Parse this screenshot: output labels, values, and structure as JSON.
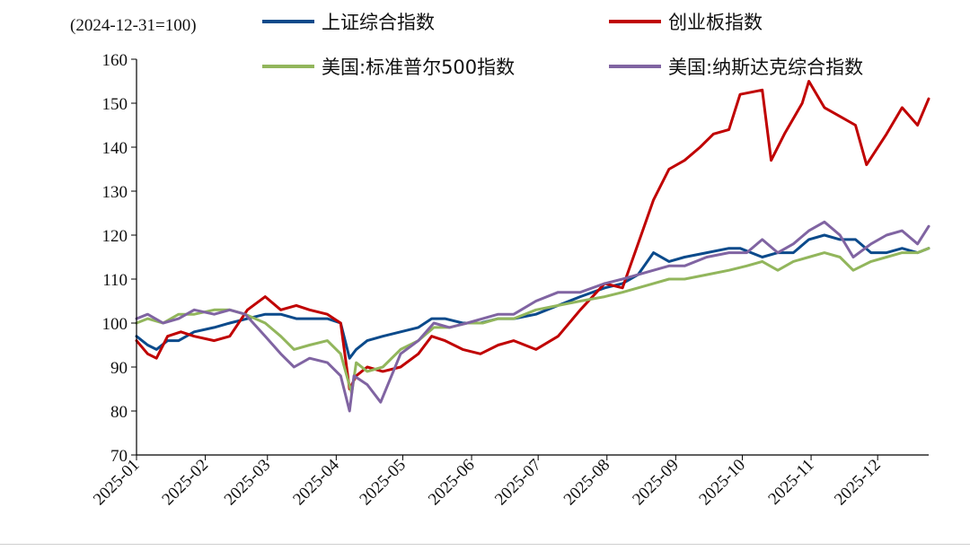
{
  "chart_data": {
    "type": "line",
    "title": "",
    "unit_note": "(2024-12-31=100)",
    "xlabel": "",
    "ylabel": "",
    "ylim": [
      70,
      160
    ],
    "yticks": [
      70,
      80,
      90,
      100,
      110,
      120,
      130,
      140,
      150,
      160
    ],
    "xlim": [
      "2025-01-01",
      "2025-12-24"
    ],
    "xtick_labels": [
      "2025-01",
      "2025-02",
      "2025-03",
      "2025-04",
      "2025-05",
      "2025-06",
      "2025-07",
      "2025-08",
      "2025-09",
      "2025-10",
      "2025-11",
      "2025-12"
    ],
    "xtick_dates": [
      "2025-01-01",
      "2025-02-01",
      "2025-03-01",
      "2025-04-01",
      "2025-05-01",
      "2025-06-01",
      "2025-07-01",
      "2025-08-01",
      "2025-09-01",
      "2025-10-01",
      "2025-11-01",
      "2025-12-01"
    ],
    "grid": false,
    "legend_position": "top",
    "series": [
      {
        "name": "上证综合指数",
        "color": "#0b4a8b",
        "x": [
          "2025-01-01",
          "2025-01-06",
          "2025-01-10",
          "2025-01-15",
          "2025-01-20",
          "2025-01-27",
          "2025-02-05",
          "2025-02-12",
          "2025-02-20",
          "2025-02-28",
          "2025-03-07",
          "2025-03-14",
          "2025-03-20",
          "2025-03-28",
          "2025-04-03",
          "2025-04-07",
          "2025-04-10",
          "2025-04-15",
          "2025-04-22",
          "2025-04-30",
          "2025-05-08",
          "2025-05-14",
          "2025-05-20",
          "2025-05-28",
          "2025-06-05",
          "2025-06-13",
          "2025-06-20",
          "2025-06-30",
          "2025-07-10",
          "2025-07-20",
          "2025-07-31",
          "2025-08-08",
          "2025-08-15",
          "2025-08-22",
          "2025-08-29",
          "2025-09-05",
          "2025-09-15",
          "2025-09-25",
          "2025-09-30",
          "2025-10-10",
          "2025-10-17",
          "2025-10-24",
          "2025-10-31",
          "2025-11-07",
          "2025-11-14",
          "2025-11-21",
          "2025-11-28",
          "2025-12-05",
          "2025-12-12",
          "2025-12-19",
          "2025-12-24"
        ],
        "values": [
          97,
          95,
          94,
          96,
          96,
          98,
          99,
          100,
          101,
          102,
          102,
          101,
          101,
          101,
          100,
          92,
          94,
          96,
          97,
          98,
          99,
          101,
          101,
          100,
          100,
          101,
          101,
          102,
          104,
          106,
          108,
          109,
          111,
          116,
          114,
          115,
          116,
          117,
          117,
          115,
          116,
          116,
          119,
          120,
          119,
          119,
          116,
          116,
          117,
          116,
          117
        ]
      },
      {
        "name": "创业板指数",
        "color": "#c00000",
        "x": [
          "2025-01-01",
          "2025-01-06",
          "2025-01-10",
          "2025-01-15",
          "2025-01-21",
          "2025-01-27",
          "2025-02-05",
          "2025-02-12",
          "2025-02-20",
          "2025-02-28",
          "2025-03-07",
          "2025-03-14",
          "2025-03-20",
          "2025-03-28",
          "2025-04-03",
          "2025-04-07",
          "2025-04-10",
          "2025-04-15",
          "2025-04-22",
          "2025-04-30",
          "2025-05-08",
          "2025-05-14",
          "2025-05-20",
          "2025-05-28",
          "2025-06-05",
          "2025-06-13",
          "2025-06-20",
          "2025-06-30",
          "2025-07-10",
          "2025-07-20",
          "2025-07-31",
          "2025-08-08",
          "2025-08-15",
          "2025-08-22",
          "2025-08-29",
          "2025-09-05",
          "2025-09-12",
          "2025-09-18",
          "2025-09-25",
          "2025-09-30",
          "2025-10-10",
          "2025-10-14",
          "2025-10-20",
          "2025-10-28",
          "2025-10-31",
          "2025-11-07",
          "2025-11-14",
          "2025-11-21",
          "2025-11-26",
          "2025-12-05",
          "2025-12-12",
          "2025-12-19",
          "2025-12-24"
        ],
        "values": [
          96,
          93,
          92,
          97,
          98,
          97,
          96,
          97,
          103,
          106,
          103,
          104,
          103,
          102,
          100,
          85,
          88,
          90,
          89,
          90,
          93,
          97,
          96,
          94,
          93,
          95,
          96,
          94,
          97,
          103,
          109,
          108,
          118,
          128,
          135,
          137,
          140,
          143,
          144,
          152,
          153,
          137,
          143,
          150,
          155,
          149,
          147,
          145,
          136,
          143,
          149,
          145,
          151
        ]
      },
      {
        "name": "美国:标准普尔500指数",
        "color": "#92b65c",
        "x": [
          "2025-01-01",
          "2025-01-06",
          "2025-01-13",
          "2025-01-20",
          "2025-01-27",
          "2025-02-05",
          "2025-02-12",
          "2025-02-19",
          "2025-02-28",
          "2025-03-07",
          "2025-03-13",
          "2025-03-20",
          "2025-03-28",
          "2025-04-03",
          "2025-04-08",
          "2025-04-10",
          "2025-04-15",
          "2025-04-22",
          "2025-04-30",
          "2025-05-08",
          "2025-05-15",
          "2025-05-22",
          "2025-05-30",
          "2025-06-06",
          "2025-06-13",
          "2025-06-20",
          "2025-06-30",
          "2025-07-10",
          "2025-07-20",
          "2025-07-31",
          "2025-08-08",
          "2025-08-15",
          "2025-08-22",
          "2025-08-29",
          "2025-09-05",
          "2025-09-15",
          "2025-09-25",
          "2025-10-03",
          "2025-10-10",
          "2025-10-17",
          "2025-10-24",
          "2025-10-31",
          "2025-11-07",
          "2025-11-14",
          "2025-11-20",
          "2025-11-28",
          "2025-12-05",
          "2025-12-12",
          "2025-12-19",
          "2025-12-24"
        ],
        "values": [
          100,
          101,
          100,
          102,
          102,
          103,
          103,
          102,
          100,
          97,
          94,
          95,
          96,
          93,
          84,
          91,
          89,
          90,
          94,
          96,
          99,
          99,
          100,
          100,
          101,
          101,
          103,
          104,
          105,
          106,
          107,
          108,
          109,
          110,
          110,
          111,
          112,
          113,
          114,
          112,
          114,
          115,
          116,
          115,
          112,
          114,
          115,
          116,
          116,
          117
        ]
      },
      {
        "name": "美国:纳斯达克综合指数",
        "color": "#8064a2",
        "x": [
          "2025-01-01",
          "2025-01-06",
          "2025-01-13",
          "2025-01-20",
          "2025-01-27",
          "2025-02-05",
          "2025-02-12",
          "2025-02-19",
          "2025-02-28",
          "2025-03-07",
          "2025-03-13",
          "2025-03-20",
          "2025-03-28",
          "2025-04-03",
          "2025-04-07",
          "2025-04-09",
          "2025-04-15",
          "2025-04-21",
          "2025-04-30",
          "2025-05-08",
          "2025-05-15",
          "2025-05-22",
          "2025-05-30",
          "2025-06-06",
          "2025-06-13",
          "2025-06-20",
          "2025-06-30",
          "2025-07-10",
          "2025-07-20",
          "2025-07-31",
          "2025-08-08",
          "2025-08-15",
          "2025-08-22",
          "2025-08-29",
          "2025-09-05",
          "2025-09-15",
          "2025-09-25",
          "2025-10-03",
          "2025-10-10",
          "2025-10-17",
          "2025-10-24",
          "2025-10-31",
          "2025-11-07",
          "2025-11-14",
          "2025-11-20",
          "2025-11-28",
          "2025-12-05",
          "2025-12-12",
          "2025-12-19",
          "2025-12-24"
        ],
        "values": [
          101,
          102,
          100,
          101,
          103,
          102,
          103,
          102,
          97,
          93,
          90,
          92,
          91,
          88,
          80,
          88,
          86,
          82,
          93,
          96,
          100,
          99,
          100,
          101,
          102,
          102,
          105,
          107,
          107,
          109,
          110,
          111,
          112,
          113,
          113,
          115,
          116,
          116,
          119,
          116,
          118,
          121,
          123,
          120,
          115,
          118,
          120,
          121,
          118,
          122
        ]
      }
    ]
  }
}
